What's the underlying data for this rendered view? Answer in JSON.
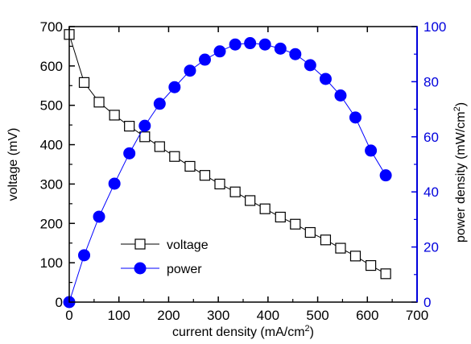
{
  "chart_data": {
    "type": "line",
    "x_axis": {
      "label": "current density (mA/cm",
      "label_sup": "2",
      "label_end": ")",
      "min": 0,
      "max": 700,
      "ticks": [
        0,
        100,
        200,
        300,
        400,
        500,
        600,
        700
      ]
    },
    "y_left": {
      "label": "voltage (mV)",
      "min": 0,
      "max": 700,
      "ticks": [
        0,
        100,
        200,
        300,
        400,
        500,
        600,
        700
      ]
    },
    "y_right": {
      "label": "power density  (mW/cm",
      "label_sup": "2",
      "label_end": ")",
      "min": 0,
      "max": 100,
      "ticks": [
        0,
        20,
        40,
        60,
        80,
        100
      ],
      "color": "#0000dd"
    },
    "legend": {
      "placement": "lower-left"
    },
    "series": [
      {
        "name": "voltage",
        "axis": "left",
        "marker": "open-square",
        "color": "#000000",
        "x": [
          0,
          30,
          60,
          91,
          121,
          152,
          182,
          212,
          243,
          273,
          303,
          334,
          364,
          394,
          425,
          455,
          485,
          516,
          546,
          576,
          607,
          637
        ],
        "y": [
          680,
          558,
          508,
          475,
          447,
          420,
          395,
          370,
          345,
          322,
          300,
          280,
          258,
          237,
          216,
          198,
          177,
          158,
          137,
          117,
          93,
          72
        ]
      },
      {
        "name": "power",
        "axis": "right",
        "marker": "filled-circle",
        "color": "#0000ff",
        "x": [
          0,
          30,
          60,
          91,
          121,
          152,
          182,
          212,
          243,
          273,
          303,
          334,
          364,
          394,
          425,
          455,
          485,
          516,
          546,
          576,
          607,
          637
        ],
        "y": [
          0,
          17,
          31,
          43,
          54,
          64,
          72,
          78,
          84,
          88,
          91,
          93.5,
          94,
          93.5,
          92,
          90,
          86,
          81,
          75,
          67,
          55,
          46
        ]
      }
    ]
  }
}
